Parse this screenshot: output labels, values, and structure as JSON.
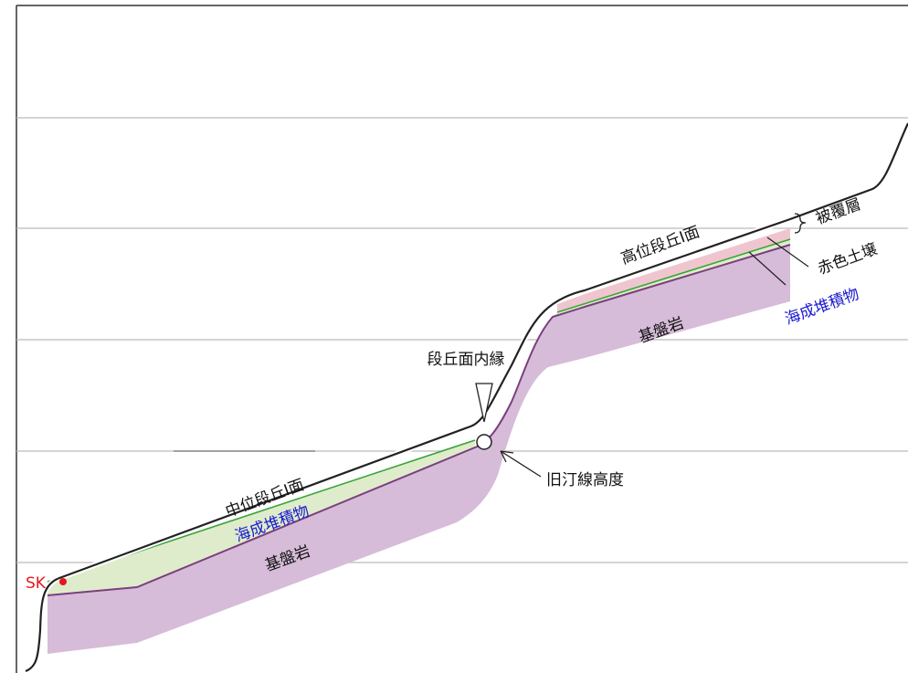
{
  "labels": {
    "sk": "SK",
    "middle_terrace": "中位段丘Ⅰ面",
    "marine_deposit_lower": "海成堆積物",
    "bedrock_lower": "基盤岩",
    "terrace_inner_edge": "段丘面内縁",
    "old_shoreline": "旧汀線高度",
    "high_terrace": "高位段丘Ⅰ面",
    "cover_layer": "被覆層",
    "red_soil": "赤色土壌",
    "marine_deposit_upper": "海成堆積物",
    "bedrock_upper": "基盤岩"
  }
}
